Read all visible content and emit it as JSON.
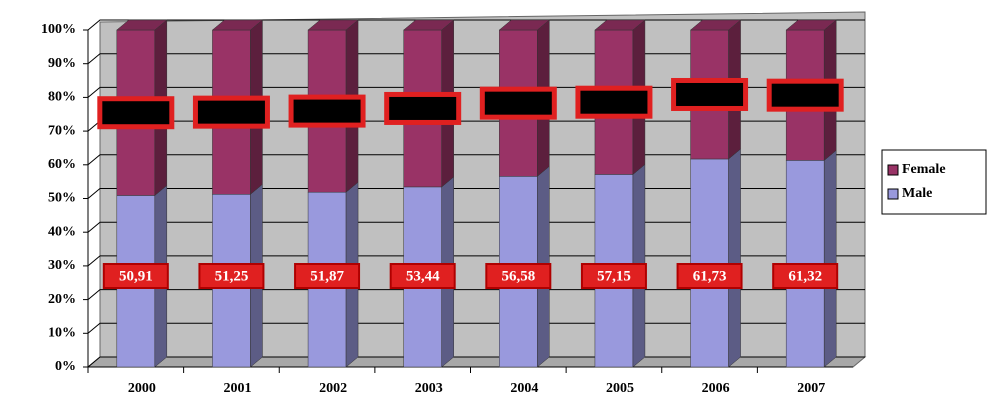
{
  "chart_data": {
    "type": "stacked-bar",
    "categories": [
      "2000",
      "2001",
      "2002",
      "2003",
      "2004",
      "2005",
      "2006",
      "2007"
    ],
    "series": [
      {
        "name": "Male",
        "color": "#9999dd",
        "values": [
          50.91,
          51.25,
          51.87,
          53.44,
          56.58,
          57.15,
          61.73,
          61.32
        ],
        "value_labels": [
          "50,91",
          "51,25",
          "51,87",
          "53,44",
          "56,58",
          "57,15",
          "61,73",
          "61,32"
        ]
      },
      {
        "name": "Female",
        "color": "#993366",
        "values": [
          49.09,
          48.75,
          48.13,
          46.56,
          43.42,
          42.85,
          38.27,
          38.68
        ]
      }
    ],
    "ylim": [
      0,
      100
    ],
    "yticks": [
      {
        "value": 0,
        "label": "0%"
      },
      {
        "value": 10,
        "label": "10%"
      },
      {
        "value": 20,
        "label": "20%"
      },
      {
        "value": 30,
        "label": "30%"
      },
      {
        "value": 40,
        "label": "40%"
      },
      {
        "value": 50,
        "label": "50%"
      },
      {
        "value": 60,
        "label": "60%"
      },
      {
        "value": 70,
        "label": "70%"
      },
      {
        "value": 80,
        "label": "80%"
      },
      {
        "value": 90,
        "label": "90%"
      },
      {
        "value": 100,
        "label": "100%"
      }
    ],
    "grid": true
  }
}
